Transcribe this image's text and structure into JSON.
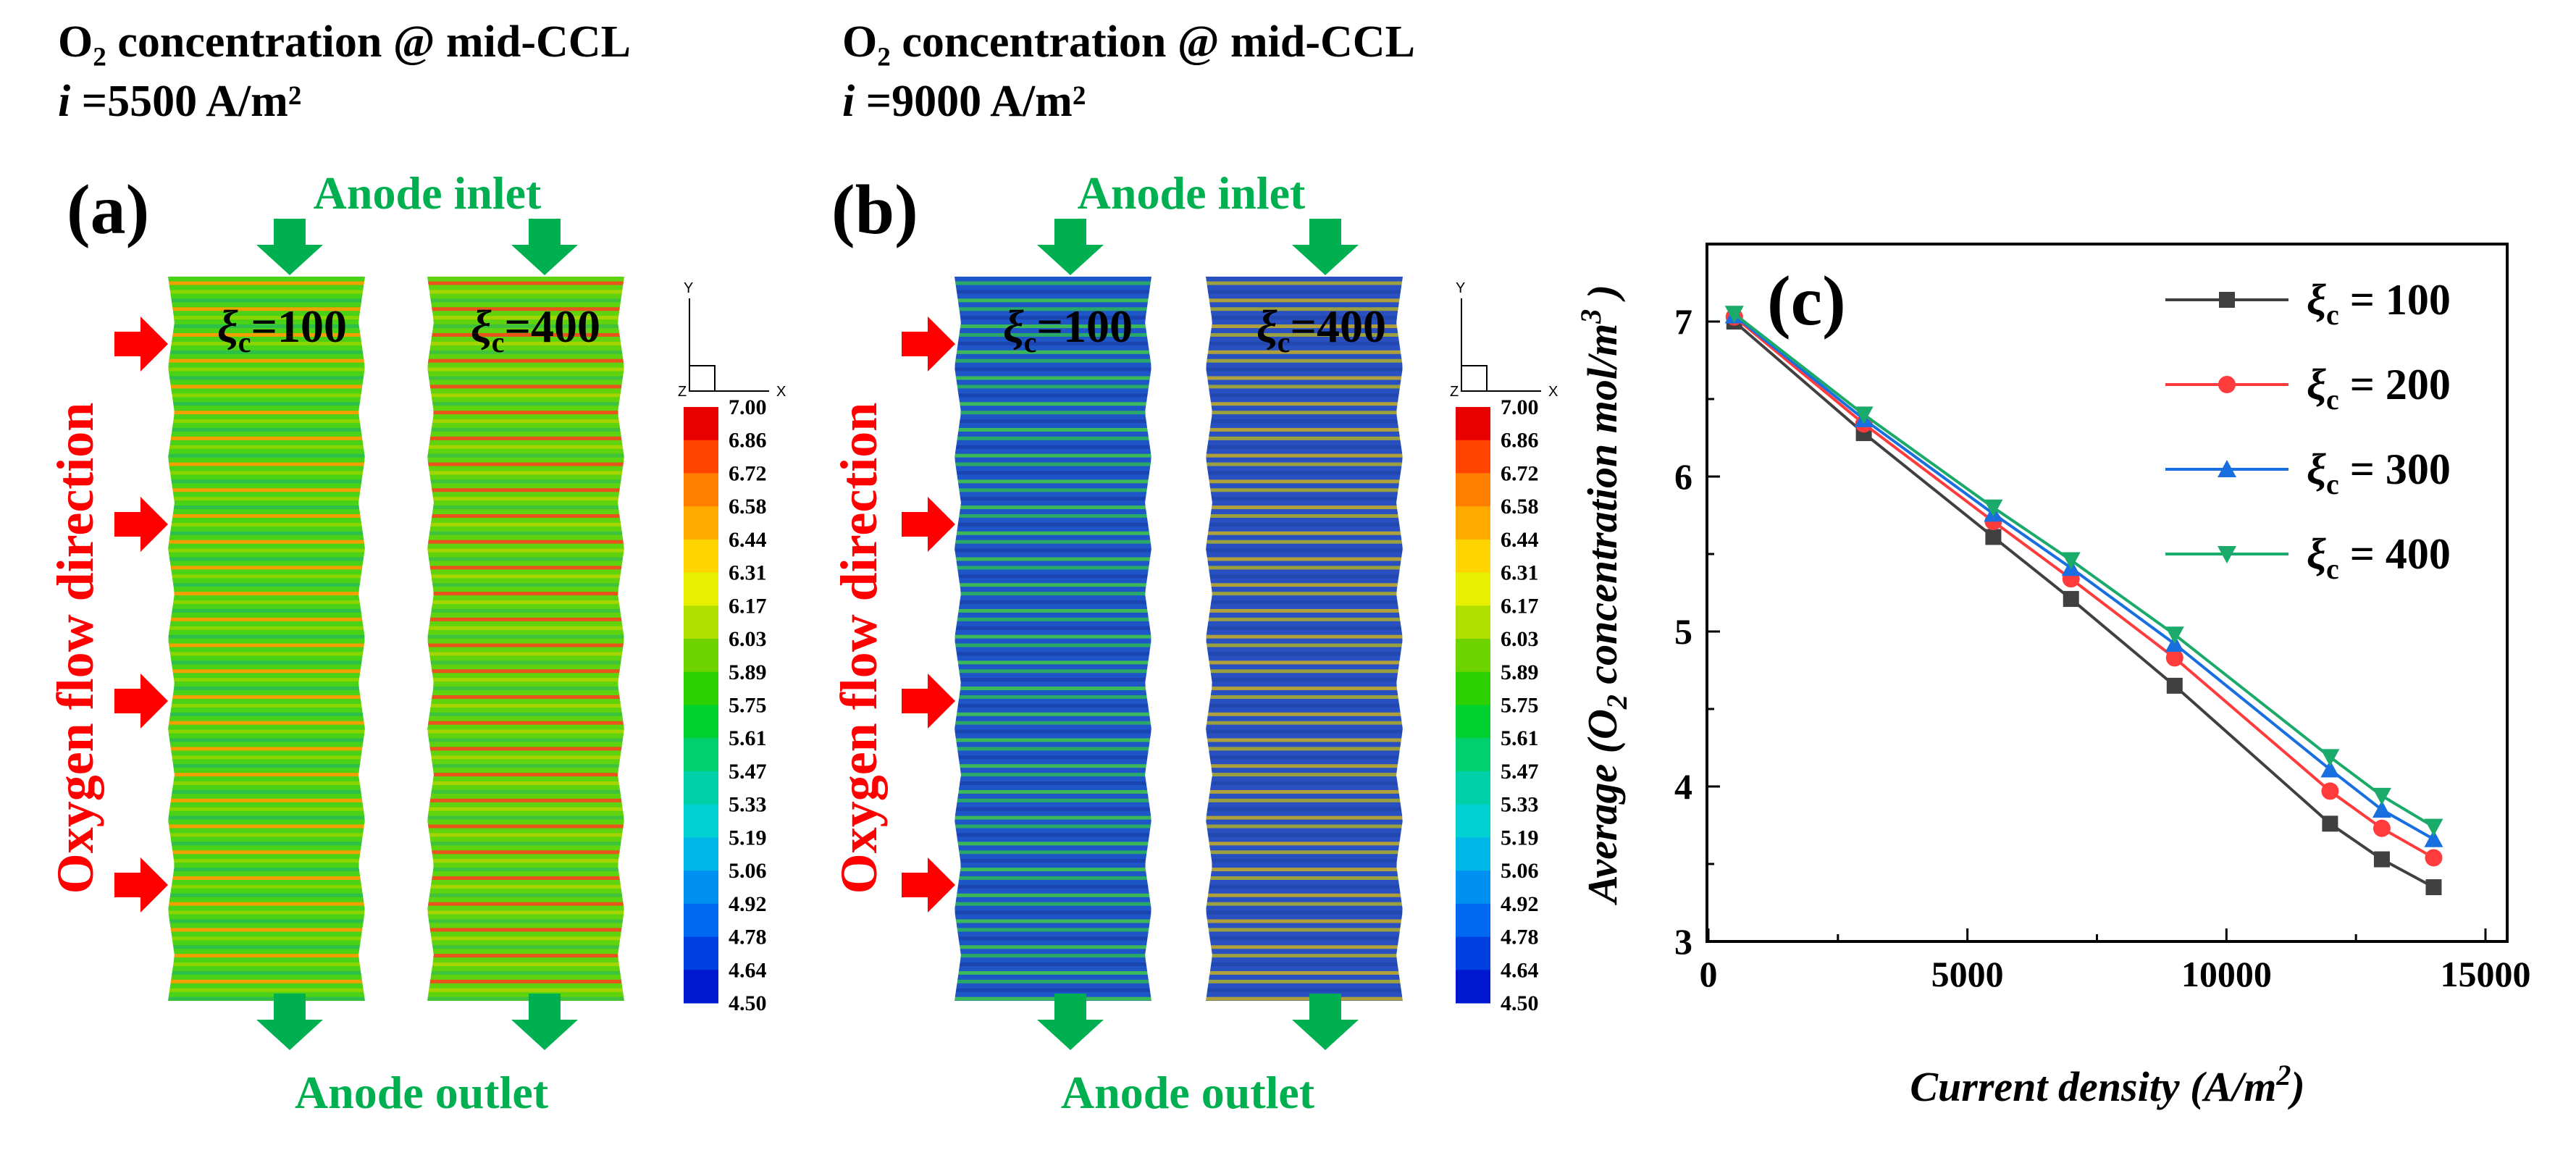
{
  "panel_a": {
    "title_line1": "O₂ concentration @ mid-CCL",
    "title_line2_prefix": "i",
    "title_line2_rest": " =5500 A/m²",
    "label": "(a)",
    "inlet": "Anode inlet",
    "outlet": "Anode outlet",
    "flow_label": "Oxygen flow direction",
    "field_left": "ξc=100",
    "field_right": "ξc=400",
    "axis_y": "Y",
    "axis_x": "X",
    "axis_z": "Z",
    "stripe_colors_left": [
      "#4ad216",
      "#f0a000",
      "#8ad400",
      "#2dbf4a"
    ],
    "stripe_colors_right": [
      "#5fd40e",
      "#e8541b",
      "#a6d400",
      "#3fc23c"
    ]
  },
  "panel_b": {
    "title_line1": "O₂ concentration @ mid-CCL",
    "title_line2_prefix": "i",
    "title_line2_rest": " =9000 A/m²",
    "label": "(b)",
    "inlet": "Anode inlet",
    "outlet": "Anode outlet",
    "flow_label": "Oxygen flow direction",
    "field_left": "ξc=100",
    "field_right": "ξc=400",
    "axis_y": "Y",
    "axis_x": "X",
    "axis_z": "Z",
    "stripe_colors_left": [
      "#1e56c8",
      "#2aa86a",
      "#1a44b0",
      "#3ab85a"
    ],
    "stripe_colors_right": [
      "#2850c0",
      "#9aa040",
      "#2248b0",
      "#b0a03c"
    ]
  },
  "colorbar": {
    "labels": [
      "7.00",
      "6.86",
      "6.72",
      "6.58",
      "6.44",
      "6.31",
      "6.17",
      "6.03",
      "5.89",
      "5.75",
      "5.61",
      "5.47",
      "5.33",
      "5.19",
      "5.06",
      "4.92",
      "4.78",
      "4.64",
      "4.50"
    ],
    "colors": [
      "#e80000",
      "#ff4400",
      "#ff8000",
      "#ffaa00",
      "#ffd400",
      "#e6f000",
      "#b0e000",
      "#6ed400",
      "#2cd000",
      "#00d030",
      "#00d070",
      "#00d0a8",
      "#00d0d0",
      "#00b8e8",
      "#0090f0",
      "#0068f0",
      "#0040e0",
      "#0018d0"
    ]
  },
  "chart_data": {
    "type": "line",
    "label": "(c)",
    "xlabel": "Current density (A/m²)",
    "ylabel": "Average (O₂ concentration mol/m³ )",
    "xlim": [
      0,
      15000
    ],
    "ylim": [
      3,
      7.5
    ],
    "xticks": [
      0,
      5000,
      10000,
      15000
    ],
    "yticks": [
      3,
      4,
      5,
      6,
      7
    ],
    "legend_position": "top-right",
    "series": [
      {
        "name": "ξc = 100",
        "color": "#404040",
        "marker": "square",
        "x": [
          500,
          3000,
          5500,
          7000,
          9000,
          12000,
          13000,
          14000
        ],
        "y": [
          7.0,
          6.28,
          5.61,
          5.21,
          4.65,
          3.76,
          3.53,
          3.35
        ]
      },
      {
        "name": "ξc = 200",
        "color": "#ff3b3b",
        "marker": "circle",
        "x": [
          500,
          3000,
          5500,
          7000,
          9000,
          12000,
          13000,
          14000
        ],
        "y": [
          7.03,
          6.34,
          5.71,
          5.34,
          4.83,
          3.97,
          3.73,
          3.54
        ]
      },
      {
        "name": "ξc = 300",
        "color": "#1a6fe0",
        "marker": "triangle-up",
        "x": [
          500,
          3000,
          5500,
          7000,
          9000,
          12000,
          13000,
          14000
        ],
        "y": [
          7.04,
          6.37,
          5.76,
          5.41,
          4.92,
          4.11,
          3.85,
          3.66
        ]
      },
      {
        "name": "ξc = 400",
        "color": "#1aaa6a",
        "marker": "triangle-down",
        "x": [
          500,
          3000,
          5500,
          7000,
          9000,
          12000,
          13000,
          14000
        ],
        "y": [
          7.05,
          6.4,
          5.8,
          5.46,
          4.98,
          4.19,
          3.94,
          3.74
        ]
      }
    ]
  }
}
